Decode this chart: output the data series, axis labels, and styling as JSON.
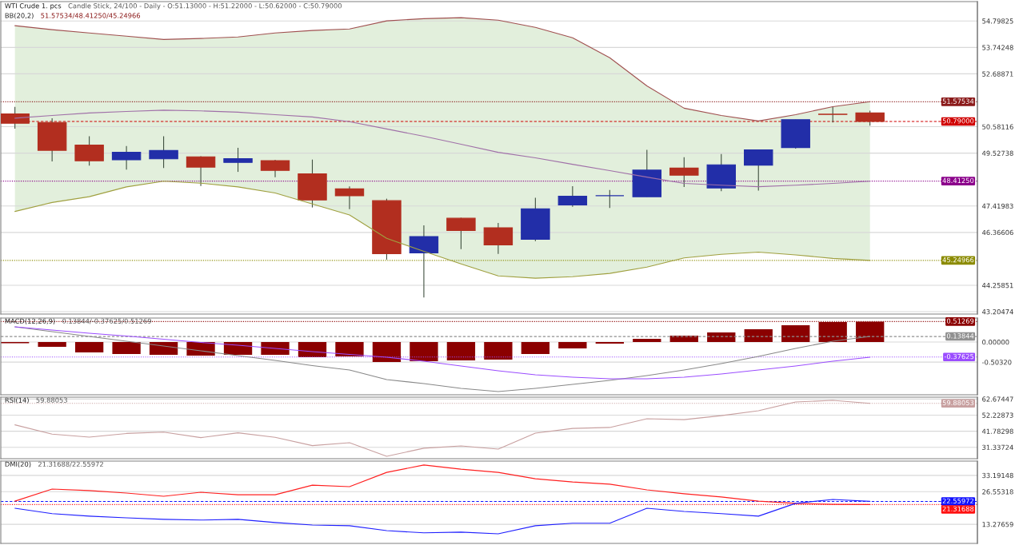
{
  "chart_data": [
    {
      "type": "candlestick",
      "title": "WTI Crude 1. pcs",
      "subtitle": "Candle Stick, 24/100 - Daily - O:51.13000 - H:51.22000 - L:50.62000 - C:50.79000",
      "annotations": [
        "BB(20,2)",
        "51.57534/48.41250/45.24966"
      ],
      "categories": [
        null,
        null,
        null,
        null,
        null,
        null,
        null,
        null,
        null,
        null,
        null,
        null,
        null,
        null,
        null,
        null,
        null,
        null,
        null,
        null,
        null,
        null,
        null,
        null
      ],
      "ohlc": [
        [
          51.09,
          51.37,
          50.5,
          50.72
        ],
        [
          50.75,
          50.92,
          49.2,
          49.64
        ],
        [
          49.85,
          50.2,
          49.03,
          49.22
        ],
        [
          49.26,
          49.81,
          48.87,
          49.56
        ],
        [
          49.3,
          50.2,
          48.93,
          49.63
        ],
        [
          49.38,
          49.4,
          48.22,
          48.97
        ],
        [
          49.16,
          49.74,
          48.78,
          49.31
        ],
        [
          49.23,
          49.26,
          48.57,
          48.84
        ],
        [
          48.7,
          49.27,
          47.36,
          47.66
        ],
        [
          48.1,
          48.2,
          47.29,
          47.83
        ],
        [
          47.63,
          47.71,
          45.28,
          45.52
        ],
        [
          45.55,
          46.65,
          43.77,
          46.2
        ],
        [
          46.93,
          46.95,
          45.7,
          46.44
        ],
        [
          46.55,
          46.74,
          45.51,
          45.87
        ],
        [
          46.09,
          47.75,
          46.02,
          47.31
        ],
        [
          47.46,
          48.21,
          47.39,
          47.81
        ],
        [
          47.83,
          48.06,
          47.34,
          47.83
        ],
        [
          47.79,
          49.66,
          47.79,
          48.85
        ],
        [
          48.93,
          49.36,
          48.18,
          48.65
        ],
        [
          48.14,
          49.49,
          48.01,
          49.06
        ],
        [
          49.05,
          49.66,
          48.03,
          49.66
        ],
        [
          49.75,
          50.86,
          49.71,
          50.86
        ],
        [
          51.08,
          51.39,
          50.75,
          51.07
        ],
        [
          51.13,
          51.22,
          50.62,
          50.79
        ]
      ],
      "colors": [
        "#b22e1f",
        "#b22e1f",
        "#b22e1f",
        "#222ea8",
        "#222ea8",
        "#b22e1f",
        "#222ea8",
        "#b22e1f",
        "#b22e1f",
        "#b22e1f",
        "#b22e1f",
        "#222ea8",
        "#b22e1f",
        "#b22e1f",
        "#222ea8",
        "#222ea8",
        "#222ea8",
        "#222ea8",
        "#b22e1f",
        "#222ea8",
        "#222ea8",
        "#222ea8",
        "#b22e1f",
        "#b22e1f"
      ],
      "series": [
        {
          "type": "line",
          "color": "#a05050",
          "values": [
            54.61,
            54.45,
            54.32,
            54.19,
            54.06,
            54.1,
            54.16,
            54.32,
            54.42,
            54.48,
            54.8,
            54.89,
            54.93,
            54.83,
            54.54,
            54.13,
            53.33,
            52.21,
            51.32,
            51.03,
            50.81,
            51.06,
            51.38,
            51.58
          ]
        },
        {
          "type": "line",
          "color": "#a070a8",
          "values": [
            50.92,
            51.03,
            51.13,
            51.19,
            51.24,
            51.21,
            51.16,
            51.06,
            50.97,
            50.78,
            50.49,
            50.2,
            49.88,
            49.56,
            49.34,
            49.08,
            48.83,
            48.57,
            48.32,
            48.25,
            48.19,
            48.25,
            48.32,
            48.41
          ],
          "upper": [
            54.61,
            54.45,
            54.32,
            54.19,
            54.06,
            54.1,
            54.16,
            54.32,
            54.42,
            54.48,
            54.8,
            54.89,
            54.93,
            54.83,
            54.54,
            54.13,
            53.33,
            52.21,
            51.32,
            51.03,
            50.81,
            51.06,
            51.38,
            51.58
          ],
          "lower": [
            47.2,
            47.56,
            47.79,
            48.18,
            48.41,
            48.33,
            48.18,
            47.94,
            47.5,
            47.06,
            46.13,
            45.61,
            45.11,
            44.63,
            44.54,
            44.6,
            44.73,
            44.98,
            45.35,
            45.49,
            45.58,
            45.47,
            45.33,
            45.25
          ]
        },
        {
          "type": "line",
          "color": "#a0a040",
          "values": [
            47.2,
            47.56,
            47.79,
            48.18,
            48.41,
            48.33,
            48.18,
            47.94,
            47.5,
            47.06,
            46.13,
            45.61,
            45.11,
            44.63,
            44.54,
            44.6,
            44.73,
            44.98,
            45.35,
            45.49,
            45.58,
            45.47,
            45.33,
            45.25
          ]
        }
      ],
      "ylim": [
        43.11,
        55.57
      ],
      "yticks": [
        54.79825,
        53.74248,
        52.68871,
        50.58116,
        49.52738,
        47.41983,
        46.36606,
        44.25851,
        43.20474
      ],
      "ref_lines": [
        {
          "axis": "y",
          "value": 51.57534,
          "label": "51.57534",
          "color": "#8b1a1a",
          "line_style": "dotted"
        },
        {
          "axis": "y",
          "value": 50.79,
          "label": "50.79000",
          "color": "#d00000",
          "line_style": "dashed"
        },
        {
          "axis": "y",
          "value": 48.4125,
          "label": "48.41250",
          "color": "#8b008b",
          "line_style": "dotted"
        },
        {
          "axis": "y",
          "value": 45.24966,
          "label": "45.24966",
          "color": "#8b8b00",
          "line_style": "dotted"
        }
      ],
      "grid": "y",
      "tick_labels": "y"
    },
    {
      "type": "bar",
      "title": "MACD(12,26,9)",
      "subtitle": "0.13844/-0.37625/0.51269",
      "categories": [
        null,
        null,
        null,
        null,
        null,
        null,
        null,
        null,
        null,
        null,
        null,
        null,
        null,
        null,
        null,
        null,
        null,
        null,
        null,
        null,
        null,
        null,
        null,
        null
      ],
      "series": [
        {
          "type": "bar",
          "color": "#8b0000",
          "values": [
            -0.03,
            -0.12,
            -0.26,
            -0.3,
            -0.32,
            -0.34,
            -0.32,
            -0.32,
            -0.38,
            -0.36,
            -0.5,
            -0.48,
            -0.46,
            -0.44,
            -0.3,
            -0.16,
            -0.04,
            0.08,
            0.16,
            0.24,
            0.32,
            0.42,
            0.5,
            0.51
          ]
        },
        {
          "type": "line",
          "color": "#888888",
          "values": [
            0.38,
            0.26,
            0.14,
            0.02,
            -0.1,
            -0.22,
            -0.34,
            -0.46,
            -0.59,
            -0.7,
            -0.94,
            -1.04,
            -1.16,
            -1.24,
            -1.16,
            -1.06,
            -0.96,
            -0.84,
            -0.7,
            -0.54,
            -0.36,
            -0.16,
            0.02,
            0.14
          ]
        },
        {
          "type": "line",
          "color": "#9b4dff",
          "values": [
            0.38,
            0.3,
            0.22,
            0.15,
            0.07,
            -0.01,
            -0.08,
            -0.16,
            -0.24,
            -0.31,
            -0.38,
            -0.48,
            -0.6,
            -0.72,
            -0.82,
            -0.88,
            -0.92,
            -0.92,
            -0.88,
            -0.8,
            -0.7,
            -0.6,
            -0.48,
            -0.38
          ]
        }
      ],
      "ylim": [
        -1.32,
        0.6
      ],
      "yticks": [
        {
          "value": 0,
          "label": "0.00000"
        },
        {
          "value": -0.5032,
          "label": "-0.50320"
        }
      ],
      "ref_lines": [
        {
          "axis": "y",
          "value": 0.51269,
          "label": "0.51269",
          "color": "#8b0000",
          "line_style": "dotted"
        },
        {
          "axis": "y",
          "value": 0.13844,
          "label": "0.13844",
          "color": "#909090",
          "line_style": "dashed"
        },
        {
          "axis": "y",
          "value": -0.37625,
          "label": "-0.37625",
          "color": "#9b4dff",
          "line_style": "dotted"
        }
      ],
      "grid": "y",
      "tick_labels": "y"
    },
    {
      "type": "line",
      "title": "RSI(14)",
      "subtitle": "59.88053",
      "categories": [
        null,
        null,
        null,
        null,
        null,
        null,
        null,
        null,
        null,
        null,
        null,
        null,
        null,
        null,
        null,
        null,
        null,
        null,
        null,
        null,
        null,
        null,
        null,
        null
      ],
      "series": [
        {
          "color": "#c8a0a0",
          "values": [
            45.9,
            39.9,
            37.9,
            40.3,
            41.2,
            37.6,
            40.7,
            37.8,
            32.4,
            34.3,
            25.5,
            30.7,
            32.2,
            30.1,
            40.5,
            43.6,
            44.2,
            49.9,
            49.3,
            51.9,
            55.1,
            60.8,
            61.8,
            59.9
          ]
        }
      ],
      "ylim": [
        23.9,
        63.9
      ],
      "yticks": [
        62.67447,
        52.22873,
        41.78298,
        31.33724
      ],
      "ref_lines": [
        {
          "axis": "y",
          "value": 59.88053,
          "label": "59.88053",
          "color": "#c8a0a0",
          "line_style": "dotted"
        }
      ],
      "grid": "y",
      "tick_labels": "y"
    },
    {
      "type": "line",
      "title": "DMI(20)",
      "subtitle": "21.31688/22.55972",
      "categories": [
        null,
        null,
        null,
        null,
        null,
        null,
        null,
        null,
        null,
        null,
        null,
        null,
        null,
        null,
        null,
        null,
        null,
        null,
        null,
        null,
        null,
        null,
        null,
        null
      ],
      "series": [
        {
          "color": "#ff2020",
          "values": [
            22.7,
            27.6,
            27.0,
            26.0,
            24.7,
            26.3,
            25.3,
            25.3,
            29.2,
            28.6,
            34.4,
            37.4,
            35.7,
            34.4,
            31.8,
            30.5,
            29.6,
            27.3,
            25.7,
            24.4,
            22.7,
            21.8,
            21.4,
            21.3
          ]
        },
        {
          "color": "#2020ff",
          "values": [
            19.8,
            17.6,
            16.6,
            15.9,
            15.3,
            15.0,
            15.3,
            14.0,
            13.0,
            12.7,
            10.7,
            9.8,
            10.1,
            9.4,
            12.7,
            13.7,
            13.7,
            19.8,
            18.5,
            17.6,
            16.6,
            21.8,
            23.4,
            22.6
          ]
        }
      ],
      "ylim": [
        5.5,
        39.0
      ],
      "yticks": [
        33.19148,
        26.55318,
        13.27659
      ],
      "ref_lines": [
        {
          "axis": "y",
          "value": 22.55972,
          "label": "22.55972",
          "color": "#1010ff",
          "line_style": "dashed"
        },
        {
          "axis": "y",
          "value": 21.31688,
          "label": "21.31688",
          "color": "#ff1010",
          "line_style": "dotted"
        }
      ],
      "grid": "y",
      "tick_labels": "y"
    }
  ]
}
